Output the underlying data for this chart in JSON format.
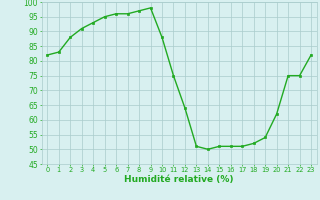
{
  "x": [
    0,
    1,
    2,
    3,
    4,
    5,
    6,
    7,
    8,
    9,
    10,
    11,
    12,
    13,
    14,
    15,
    16,
    17,
    18,
    19,
    20,
    21,
    22,
    23
  ],
  "y": [
    82,
    83,
    88,
    91,
    93,
    95,
    96,
    96,
    97,
    98,
    88,
    75,
    64,
    51,
    50,
    51,
    51,
    51,
    52,
    54,
    62,
    75,
    75,
    82
  ],
  "line_color": "#22aa22",
  "marker": "s",
  "marker_size": 1.8,
  "line_width": 1.0,
  "xlabel": "Humidité relative (%)",
  "xlabel_color": "#22aa22",
  "xlabel_fontsize": 6.5,
  "background_color": "#d8f0f0",
  "grid_color": "#aacccc",
  "tick_color": "#22aa22",
  "ylim": [
    45,
    100
  ],
  "xlim": [
    -0.5,
    23.5
  ],
  "yticks": [
    45,
    50,
    55,
    60,
    65,
    70,
    75,
    80,
    85,
    90,
    95,
    100
  ],
  "xticks": [
    0,
    1,
    2,
    3,
    4,
    5,
    6,
    7,
    8,
    9,
    10,
    11,
    12,
    13,
    14,
    15,
    16,
    17,
    18,
    19,
    20,
    21,
    22,
    23
  ],
  "ytick_fontsize": 5.5,
  "xtick_fontsize": 4.8
}
